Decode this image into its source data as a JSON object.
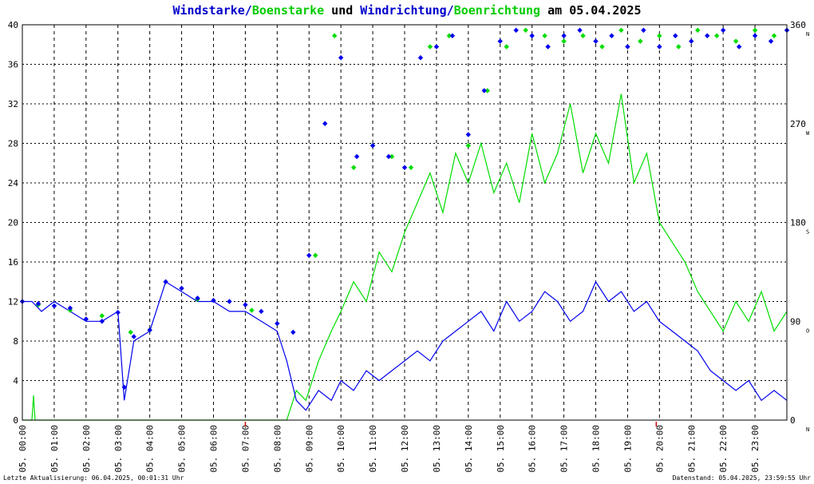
{
  "header": {
    "parts": [
      {
        "text": "Windstarke",
        "color": "#0000cc"
      },
      {
        "text": "/",
        "color": "#0000cc"
      },
      {
        "text": "Boenstarke",
        "color": "#00cc00"
      },
      {
        "text": " und ",
        "color": "#000000"
      },
      {
        "text": "Windrichtung",
        "color": "#0000cc"
      },
      {
        "text": "/",
        "color": "#0000cc"
      },
      {
        "text": "Boenrichtung",
        "color": "#00cc00"
      },
      {
        "text": " am 05.04.2025",
        "color": "#000000"
      }
    ]
  },
  "footer": {
    "left": "Letzte Aktualisierung: 06.04.2025, 00:01:31 Uhr",
    "right": "Datenstand: 05.04.2025, 23:59:55 Uhr"
  },
  "chart_data": {
    "type": "line",
    "grid": true,
    "xlim": [
      0,
      24
    ],
    "ylim": [
      0,
      40
    ],
    "y2lim": [
      0,
      360
    ],
    "x_ticks": [
      "05. 00:00",
      "05. 01:00",
      "05. 02:00",
      "05. 03:00",
      "05. 04:00",
      "05. 05:00",
      "05. 06:00",
      "05. 07:00",
      "05. 08:00",
      "05. 09:00",
      "05. 10:00",
      "05. 11:00",
      "05. 12:00",
      "05. 13:00",
      "05. 14:00",
      "05. 15:00",
      "05. 16:00",
      "05. 17:00",
      "05. 18:00",
      "05. 19:00",
      "05. 20:00",
      "05. 21:00",
      "05. 22:00",
      "05. 23:00"
    ],
    "y_ticks": [
      "0",
      "4",
      "8",
      "12",
      "16",
      "20",
      "24",
      "28",
      "32",
      "36",
      "40"
    ],
    "y2_ticks": [
      {
        "value": 0,
        "label": "0",
        "compass": "N"
      },
      {
        "value": 90,
        "label": "90",
        "compass": "O"
      },
      {
        "value": 180,
        "label": "180",
        "compass": "S"
      },
      {
        "value": 270,
        "label": "270",
        "compass": "W"
      },
      {
        "value": 360,
        "label": "360",
        "compass": "N"
      }
    ],
    "colors": {
      "wind": "#0000ee",
      "gust": "#00dd00",
      "grid": "#000000",
      "marker": "#cc0000"
    },
    "markers_x": [
      7.0,
      19.9
    ],
    "series": [
      {
        "key": "gust_speed",
        "x": [
          0.0,
          0.3,
          0.35,
          0.4,
          0.5,
          1,
          2,
          3,
          4,
          5,
          6,
          7,
          8,
          8.3,
          8.6,
          8.9,
          9.3,
          9.7,
          10,
          10.4,
          10.8,
          11.2,
          11.6,
          12,
          12.4,
          12.8,
          13.2,
          13.6,
          14,
          14.4,
          14.8,
          15.2,
          15.6,
          16,
          16.4,
          16.8,
          17.2,
          17.6,
          18,
          18.4,
          18.8,
          19.2,
          19.6,
          20,
          20.4,
          20.8,
          21.2,
          21.6,
          22,
          22.4,
          22.8,
          23.2,
          23.6,
          24
        ],
        "values": [
          0,
          0,
          2.5,
          0,
          0,
          0,
          0,
          0,
          0,
          0,
          0,
          0,
          0,
          0,
          3,
          2,
          6,
          9,
          11,
          14,
          12,
          17,
          15,
          19,
          22,
          25,
          21,
          27,
          24,
          28,
          23,
          26,
          22,
          29,
          24,
          27,
          32,
          25,
          29,
          26,
          33,
          24,
          27,
          20,
          18,
          16,
          13,
          11,
          9,
          12,
          10,
          13,
          9,
          11
        ]
      },
      {
        "key": "wind_speed",
        "x": [
          0.0,
          0.3,
          0.6,
          1,
          1.5,
          2,
          2.5,
          3,
          3.2,
          3.5,
          4,
          4.5,
          5,
          5.5,
          6,
          6.5,
          7,
          7.5,
          8,
          8.3,
          8.6,
          8.9,
          9.3,
          9.7,
          10,
          10.4,
          10.8,
          11.2,
          11.6,
          12,
          12.4,
          12.8,
          13.2,
          13.6,
          14,
          14.4,
          14.8,
          15.2,
          15.6,
          16,
          16.4,
          16.8,
          17.2,
          17.6,
          18,
          18.4,
          18.8,
          19.2,
          19.6,
          20,
          20.4,
          20.8,
          21.2,
          21.6,
          22,
          22.4,
          22.8,
          23.2,
          23.6,
          24
        ],
        "values": [
          12,
          12,
          11,
          12,
          11,
          10,
          10,
          11,
          2,
          8,
          9,
          14,
          13,
          12,
          12,
          11,
          11,
          10,
          9,
          6,
          2,
          1,
          3,
          2,
          4,
          3,
          5,
          4,
          5,
          6,
          7,
          6,
          8,
          9,
          10,
          11,
          9,
          12,
          10,
          11,
          13,
          12,
          10,
          11,
          14,
          12,
          13,
          11,
          12,
          10,
          9,
          8,
          7,
          5,
          4,
          3,
          4,
          2,
          3,
          2
        ]
      },
      {
        "key": "wind_direction",
        "x": [
          0.0,
          0.5,
          1,
          1.5,
          2,
          2.5,
          3,
          3.2,
          3.5,
          4,
          4.5,
          5,
          5.5,
          6,
          6.5,
          7,
          7.5,
          8,
          8.5,
          9,
          9.5,
          10,
          10.5,
          11,
          11.5,
          12,
          12.5,
          13,
          13.5,
          14,
          14.5,
          15,
          15.5,
          16,
          16.5,
          17,
          17.5,
          18,
          18.5,
          19,
          19.5,
          20,
          20.5,
          21,
          21.5,
          22,
          22.5,
          23,
          23.5,
          24
        ],
        "values": [
          108,
          106,
          104,
          102,
          92,
          90,
          98,
          30,
          76,
          82,
          126,
          120,
          111,
          109,
          108,
          105,
          99,
          88,
          80,
          150,
          270,
          330,
          240,
          250,
          240,
          230,
          330,
          340,
          350,
          260,
          300,
          345,
          355,
          350,
          340,
          350,
          355,
          345,
          350,
          340,
          355,
          340,
          350,
          345,
          350,
          355,
          340,
          350,
          345,
          355
        ]
      },
      {
        "key": "gust_direction",
        "x": [
          0.5,
          1.5,
          2.5,
          3.4,
          4.0,
          5.5,
          7.2,
          9.2,
          9.8,
          10.4,
          11.0,
          11.6,
          12.2,
          12.8,
          13.4,
          14.0,
          14.6,
          15.2,
          15.8,
          16.4,
          17.0,
          17.6,
          18.2,
          18.8,
          19.4,
          20.0,
          20.6,
          21.2,
          21.8,
          22.4,
          23.0,
          23.6
        ],
        "values": [
          105,
          100,
          95,
          80,
          82,
          110,
          100,
          150,
          350,
          230,
          250,
          240,
          230,
          340,
          350,
          250,
          300,
          340,
          355,
          350,
          345,
          350,
          340,
          355,
          345,
          350,
          340,
          355,
          350,
          345,
          355,
          350
        ]
      }
    ]
  }
}
